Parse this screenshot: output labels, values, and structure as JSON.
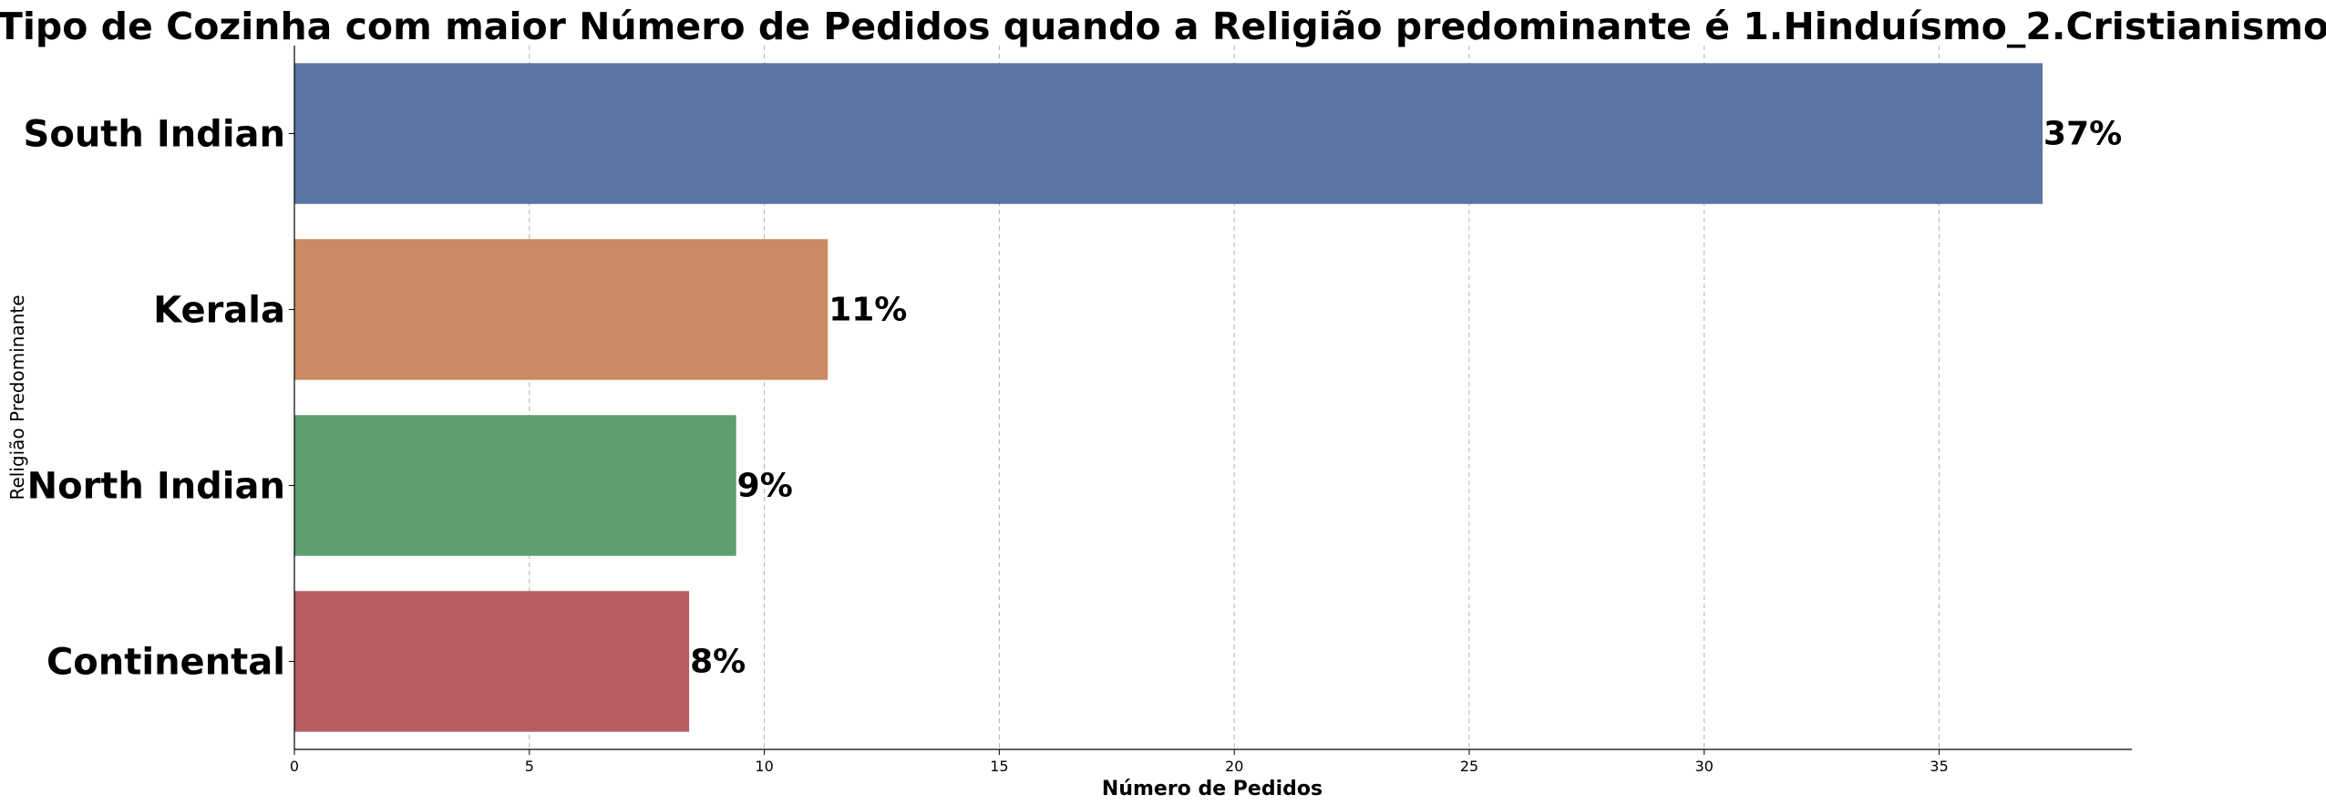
{
  "chart_data": {
    "type": "bar",
    "orientation": "horizontal",
    "title": "Tipo de Cozinha com maior Número de Pedidos quando a Religião predominante é 1.Hinduísmo_2.Cristianismo",
    "xlabel": "Número de Pedidos",
    "ylabel": "Religião Predominante",
    "categories": [
      "South Indian",
      "Kerala",
      "North Indian",
      "Continental"
    ],
    "values": [
      37.2,
      11.35,
      9.4,
      8.4
    ],
    "data_labels": [
      "37%",
      "11%",
      "9%",
      "8%"
    ],
    "colors": [
      "#5975a4",
      "#cc8963",
      "#5f9e6e",
      "#b55d60"
    ],
    "xlim": [
      0,
      39.1
    ],
    "xticks": [
      0,
      5,
      10,
      15,
      20,
      25,
      30,
      35
    ],
    "grid": "x-dashed",
    "legend": "none"
  }
}
